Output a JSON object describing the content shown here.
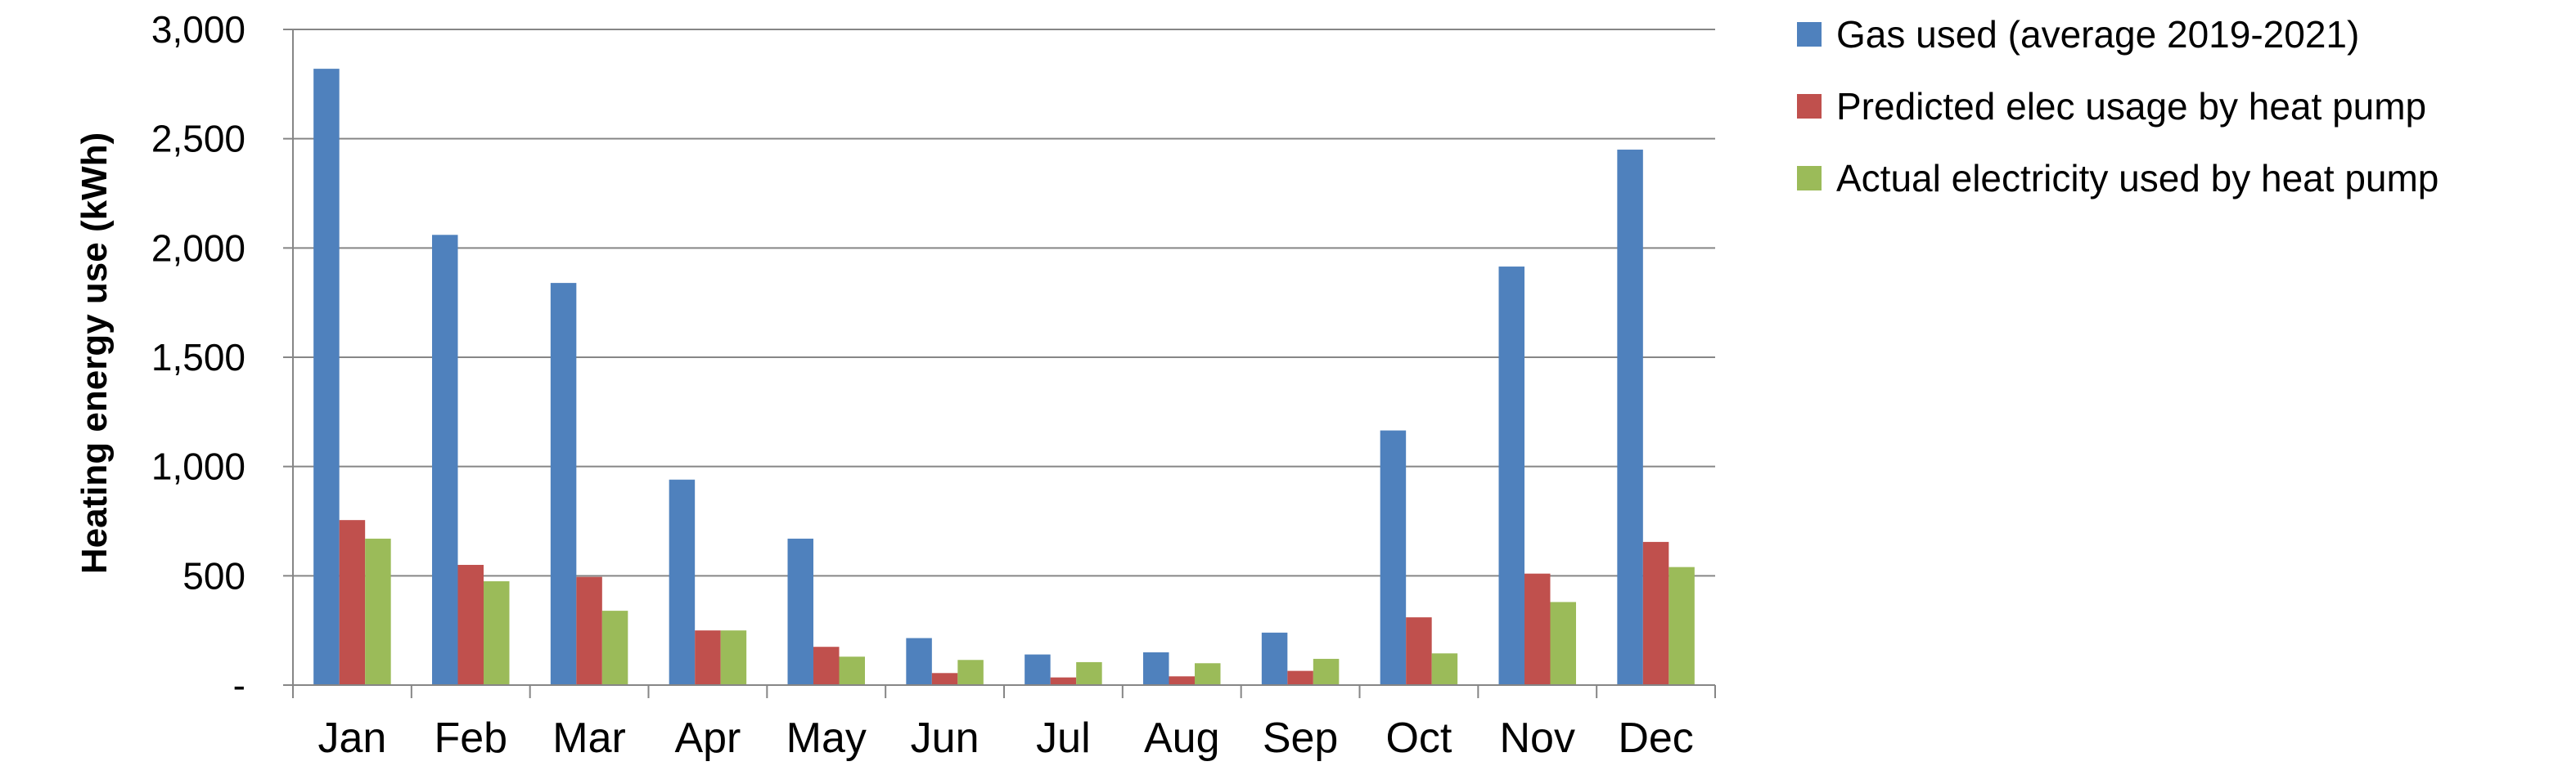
{
  "chart_data": {
    "type": "bar",
    "title": "",
    "xlabel": "",
    "ylabel": "Heating energy use (kWh)",
    "ylim": [
      0,
      3000
    ],
    "yticks": [
      {
        "value": 0,
        "label": "-"
      },
      {
        "value": 500,
        "label": "500"
      },
      {
        "value": 1000,
        "label": "1,000"
      },
      {
        "value": 1500,
        "label": "1,500"
      },
      {
        "value": 2000,
        "label": "2,000"
      },
      {
        "value": 2500,
        "label": "2,500"
      },
      {
        "value": 3000,
        "label": "3,000"
      }
    ],
    "grid": "horizontal",
    "legend_position": "top-right",
    "categories": [
      "Jan",
      "Feb",
      "Mar",
      "Apr",
      "May",
      "Jun",
      "Jul",
      "Aug",
      "Sep",
      "Oct",
      "Nov",
      "Dec"
    ],
    "series": [
      {
        "name": "Gas used (average 2019-2021)",
        "color": "#4F81BD",
        "values": [
          2820,
          2060,
          1840,
          940,
          670,
          215,
          140,
          150,
          240,
          1165,
          1915,
          2450
        ]
      },
      {
        "name": "Predicted elec usage by heat pump",
        "color": "#C0504D",
        "values": [
          755,
          550,
          495,
          250,
          175,
          55,
          35,
          40,
          65,
          310,
          510,
          655
        ]
      },
      {
        "name": "Actual electricity used by heat pump",
        "color": "#9BBB59",
        "values": [
          670,
          475,
          340,
          250,
          130,
          115,
          105,
          100,
          120,
          145,
          380,
          540
        ]
      }
    ]
  }
}
